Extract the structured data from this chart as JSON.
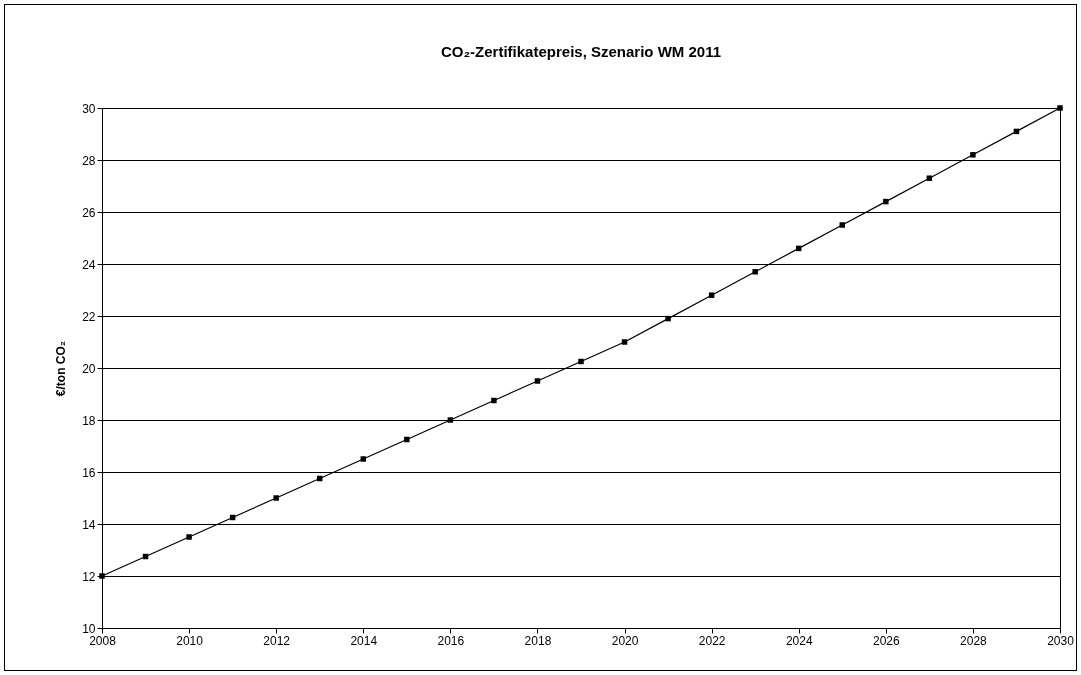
{
  "chart_data": {
    "type": "line",
    "title": "CO₂-Zertifikatepreis, Szenario WM 2011",
    "ylabel": "€/ton CO₂",
    "x": [
      2008,
      2009,
      2010,
      2011,
      2012,
      2013,
      2014,
      2015,
      2016,
      2017,
      2018,
      2019,
      2020,
      2021,
      2022,
      2023,
      2024,
      2025,
      2026,
      2027,
      2028,
      2029,
      2030
    ],
    "series": [
      {
        "color": "#000000",
        "values": [
          12,
          12.75,
          13.5,
          14.25,
          15,
          15.75,
          16.5,
          17.25,
          18,
          18.75,
          19.5,
          20.25,
          21,
          21.9,
          22.8,
          23.7,
          24.6,
          25.5,
          26.4,
          27.3,
          28.2,
          29.1,
          30
        ]
      }
    ],
    "xlim": [
      2008,
      2030
    ],
    "xticks": [
      2008,
      2010,
      2012,
      2014,
      2016,
      2018,
      2020,
      2022,
      2024,
      2026,
      2028,
      2030
    ],
    "ylim": [
      10,
      30
    ],
    "yticks": [
      10,
      12,
      14,
      16,
      18,
      20,
      22,
      24,
      26,
      28,
      30
    ],
    "grid": "y",
    "marker": "square",
    "line_style": "solid"
  }
}
